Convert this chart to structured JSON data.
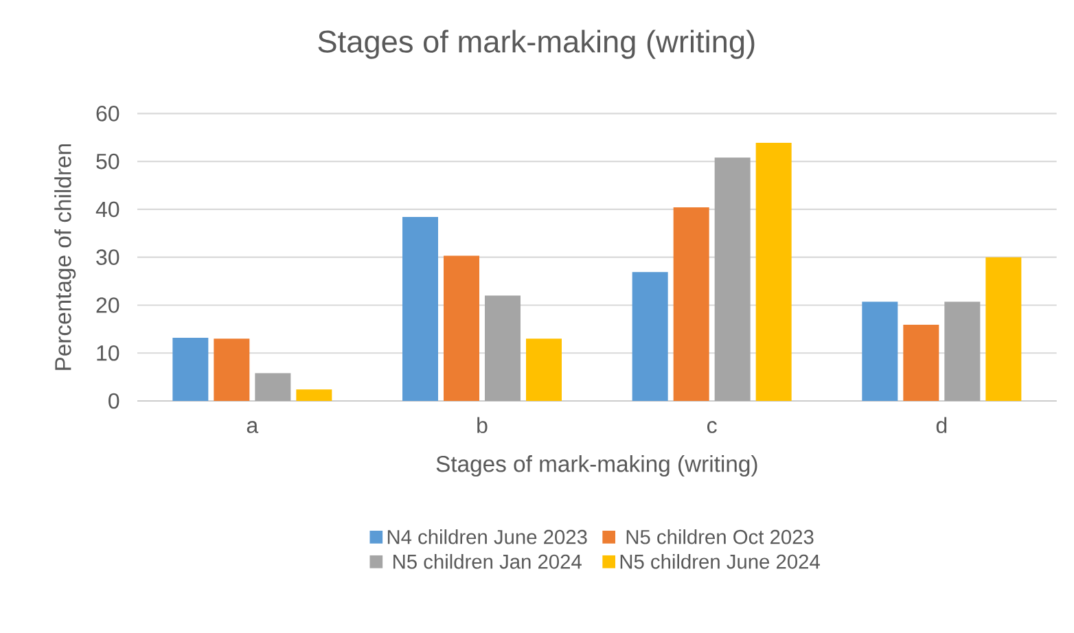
{
  "chart_data": {
    "type": "bar",
    "title": "Stages of mark-making (writing)",
    "xlabel": "Stages of mark-making (writing)",
    "ylabel": "Percentage of children",
    "categories": [
      "a",
      "b",
      "c",
      "d"
    ],
    "series": [
      {
        "name": "N4 children June 2023",
        "color": "#5b9bd5",
        "values": [
          13.2,
          38.4,
          26.9,
          20.7
        ]
      },
      {
        "name": "N5 children Oct 2023",
        "color": "#ed7d31",
        "values": [
          13.0,
          30.3,
          40.4,
          15.9
        ]
      },
      {
        "name": "N5 children Jan 2024",
        "color": "#a5a5a5",
        "values": [
          5.8,
          22.0,
          50.8,
          20.7
        ]
      },
      {
        "name": "N5 children June 2024",
        "color": "#ffc000",
        "values": [
          2.4,
          13.0,
          53.9,
          30.0
        ]
      }
    ],
    "ylim": [
      0,
      60
    ],
    "yticks": [
      0,
      10,
      20,
      30,
      40,
      50,
      60
    ],
    "grid": "y",
    "legend": "bottom"
  }
}
